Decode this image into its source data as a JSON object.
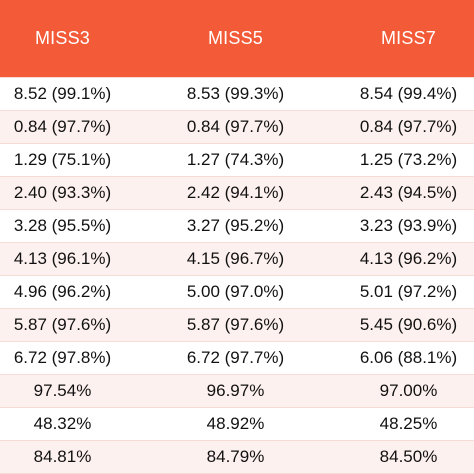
{
  "colors": {
    "header_background": "#f35a38",
    "header_text": "#ffffff",
    "row_tint": "#fdf1ef",
    "cell_text": "#111111"
  },
  "table": {
    "headers": [
      "MISS3",
      "MISS5",
      "MISS7"
    ],
    "rows": [
      [
        "8.52 (99.1%)",
        "8.53 (99.3%)",
        "8.54 (99.4%)"
      ],
      [
        "0.84 (97.7%)",
        "0.84 (97.7%)",
        "0.84 (97.7%)"
      ],
      [
        "1.29 (75.1%)",
        "1.27 (74.3%)",
        "1.25 (73.2%)"
      ],
      [
        "2.40 (93.3%)",
        "2.42 (94.1%)",
        "2.43 (94.5%)"
      ],
      [
        "3.28 (95.5%)",
        "3.27 (95.2%)",
        "3.23 (93.9%)"
      ],
      [
        "4.13 (96.1%)",
        "4.15 (96.7%)",
        "4.13 (96.2%)"
      ],
      [
        "4.96 (96.2%)",
        "5.00 (97.0%)",
        "5.01 (97.2%)"
      ],
      [
        "5.87 (97.6%)",
        "5.87 (97.6%)",
        "5.45 (90.6%)"
      ],
      [
        "6.72 (97.8%)",
        "6.72 (97.7%)",
        "6.06 (88.1%)"
      ],
      [
        "97.54%",
        "96.97%",
        "97.00%"
      ],
      [
        "48.32%",
        "48.92%",
        "48.25%"
      ],
      [
        "84.81%",
        "84.79%",
        "84.50%"
      ]
    ]
  }
}
